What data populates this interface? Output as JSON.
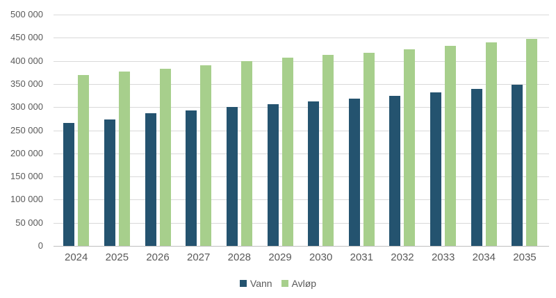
{
  "chart_data": {
    "type": "bar",
    "title": "",
    "xlabel": "",
    "ylabel": "",
    "categories": [
      "2024",
      "2025",
      "2026",
      "2027",
      "2028",
      "2029",
      "2030",
      "2031",
      "2032",
      "2033",
      "2034",
      "2035"
    ],
    "series": [
      {
        "name": "Vann",
        "color": "#24536F",
        "values": [
          266000,
          274000,
          287000,
          293000,
          300000,
          306000,
          312000,
          318000,
          325000,
          332000,
          340000,
          348000
        ]
      },
      {
        "name": "Avløp",
        "color": "#A7CF8C",
        "values": [
          370000,
          377000,
          383000,
          390000,
          400000,
          407000,
          413000,
          418000,
          425000,
          433000,
          440000,
          447000
        ]
      }
    ],
    "ylim": [
      0,
      500000
    ],
    "ytick_step": 50000,
    "ytick_labels": [
      "0",
      "50 000",
      "100 000",
      "150 000",
      "200 000",
      "250 000",
      "300 000",
      "350 000",
      "400 000",
      "450 000",
      "500 000"
    ],
    "grid": true,
    "legend_position": "bottom"
  },
  "colors": {
    "gridline": "#D9D9D9",
    "axis_line": "#BFBFBF",
    "tick_text": "#595959",
    "background": "#FFFFFF"
  }
}
